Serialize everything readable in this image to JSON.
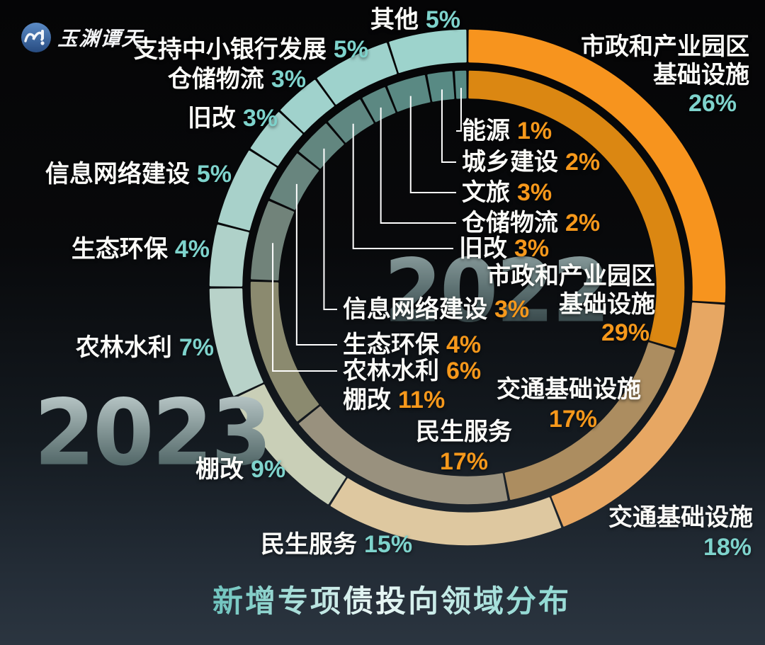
{
  "logo": {
    "brand": "玉渊谭天",
    "icon": "wave-exclamation-badge"
  },
  "title": "新增专项债投向领域分布",
  "years": {
    "inner_ring": "2022",
    "outer_ring": "2023"
  },
  "palette": {
    "teal_pct": "#7ed3cc",
    "orange_pct": "#f6981b",
    "background_top": "#050506",
    "background_bottom": "#2b3540",
    "leader_line": "#ffffff"
  },
  "chart_data": {
    "type": "pie",
    "subtype": "double-donut",
    "title": "新增专项债投向领域分布",
    "legend_position": "labels-around-ring",
    "rings": [
      {
        "name": "2023",
        "position": "outer",
        "categories": [
          "市政和产业园区基础设施",
          "交通基础设施",
          "民生服务",
          "棚改",
          "农林水利",
          "生态环保",
          "信息网络建设",
          "旧改",
          "仓储物流",
          "支持中小银行发展",
          "其他"
        ],
        "values": [
          26,
          18,
          15,
          9,
          7,
          4,
          5,
          3,
          3,
          5,
          5
        ],
        "colors": [
          "#f7941e",
          "#e7a763",
          "#dec8a0",
          "#c9cfb7",
          "#b8d2c9",
          "#afd1c9",
          "#a8d1ca",
          "#a3d1cb",
          "#a0d2cc",
          "#9ed2cc",
          "#9dd3cc"
        ]
      },
      {
        "name": "2022",
        "position": "inner",
        "categories": [
          "市政和产业园区基础设施",
          "交通基础设施",
          "民生服务",
          "棚改",
          "农林水利",
          "生态环保",
          "信息网络建设",
          "旧改",
          "仓储物流",
          "文旅",
          "城乡建设",
          "能源"
        ],
        "values": [
          29,
          17,
          17,
          11,
          6,
          4,
          3,
          3,
          2,
          3,
          2,
          1
        ],
        "colors": [
          "#db8712",
          "#ac8d60",
          "#99917e",
          "#8b8a6f",
          "#71837a",
          "#68857e",
          "#62867f",
          "#5f8781",
          "#5c8882",
          "#5a8983",
          "#588a84",
          "#578b85"
        ]
      }
    ]
  },
  "labels": [
    {
      "rows": [
        {
          "text": "其他",
          "pct": "5%"
        }
      ],
      "pct_color": "teal"
    },
    {
      "rows": [
        {
          "text": "支持中小银行发展",
          "pct": "5%"
        }
      ],
      "pct_color": "teal"
    },
    {
      "rows": [
        {
          "text": "仓储物流",
          "pct": "3%"
        }
      ],
      "pct_color": "teal"
    },
    {
      "rows": [
        {
          "text": "旧改",
          "pct": "3%"
        }
      ],
      "pct_color": "teal"
    },
    {
      "rows": [
        {
          "text": "信息网络建设",
          "pct": "5%"
        }
      ],
      "pct_color": "teal"
    },
    {
      "rows": [
        {
          "text": "生态环保",
          "pct": "4%"
        }
      ],
      "pct_color": "teal"
    },
    {
      "rows": [
        {
          "text": "农林水利",
          "pct": "7%"
        }
      ],
      "pct_color": "teal"
    },
    {
      "rows": [
        {
          "text": "棚改",
          "pct": "9%"
        }
      ],
      "pct_color": "teal"
    },
    {
      "rows": [
        {
          "text": "民生服务",
          "pct": "15%"
        }
      ],
      "pct_color": "teal"
    },
    {
      "rows": [
        {
          "text": "市政和产业园区"
        },
        {
          "text": "基础设施"
        },
        {
          "pct": "26%"
        }
      ],
      "pct_color": "teal"
    },
    {
      "rows": [
        {
          "text": "交通基础设施"
        },
        {
          "pct": "18%"
        }
      ],
      "pct_color": "teal"
    },
    {
      "rows": [
        {
          "text": "能源",
          "pct": "1%"
        }
      ],
      "pct_color": "orange"
    },
    {
      "rows": [
        {
          "text": "城乡建设",
          "pct": "2%"
        }
      ],
      "pct_color": "orange"
    },
    {
      "rows": [
        {
          "text": "文旅",
          "pct": "3%"
        }
      ],
      "pct_color": "orange"
    },
    {
      "rows": [
        {
          "text": "仓储物流",
          "pct": "2%"
        }
      ],
      "pct_color": "orange"
    },
    {
      "rows": [
        {
          "text": "旧改",
          "pct": "3%"
        }
      ],
      "pct_color": "orange"
    },
    {
      "rows": [
        {
          "text": "信息网络建设",
          "pct": "3%"
        }
      ],
      "pct_color": "orange"
    },
    {
      "rows": [
        {
          "text": "生态环保",
          "pct": "4%"
        }
      ],
      "pct_color": "orange"
    },
    {
      "rows": [
        {
          "text": "农林水利",
          "pct": "6%"
        }
      ],
      "pct_color": "orange"
    },
    {
      "rows": [
        {
          "text": "棚改",
          "pct": "11%"
        }
      ],
      "pct_color": "orange"
    },
    {
      "rows": [
        {
          "text": "民生服务"
        },
        {
          "pct": "17%"
        }
      ],
      "pct_color": "orange"
    },
    {
      "rows": [
        {
          "text": "交通基础设施"
        },
        {
          "pct": "17%"
        }
      ],
      "pct_color": "orange"
    },
    {
      "rows": [
        {
          "text": "市政和产业园区"
        },
        {
          "text": "基础设施"
        },
        {
          "pct": "29%"
        }
      ],
      "pct_color": "orange"
    }
  ]
}
